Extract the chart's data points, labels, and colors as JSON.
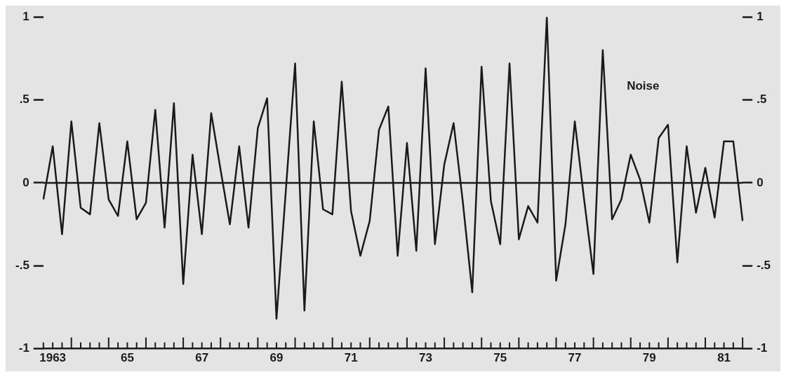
{
  "chart_data": {
    "type": "line",
    "categories": [
      null,
      "1963",
      null,
      null,
      null,
      null,
      null,
      null,
      null,
      "65",
      null,
      null,
      null,
      null,
      null,
      null,
      null,
      "67",
      null,
      null,
      null,
      null,
      null,
      null,
      null,
      "69",
      null,
      null,
      null,
      null,
      null,
      null,
      null,
      "71",
      null,
      null,
      null,
      null,
      null,
      null,
      null,
      "73",
      null,
      null,
      null,
      null,
      null,
      null,
      null,
      "75",
      null,
      null,
      null,
      null,
      null,
      null,
      null,
      "77",
      null,
      null,
      null,
      null,
      null,
      null,
      null,
      "79",
      null,
      null,
      null,
      null,
      null,
      null,
      null,
      "81",
      null,
      null
    ],
    "series": [
      {
        "name": "Noise",
        "color": "#1a1a1a",
        "values": [
          -0.1,
          0.22,
          -0.31,
          0.37,
          -0.15,
          -0.19,
          0.36,
          -0.1,
          -0.2,
          0.25,
          -0.22,
          -0.12,
          0.44,
          -0.27,
          0.48,
          -0.61,
          0.17,
          -0.31,
          0.42,
          0.08,
          -0.25,
          0.22,
          -0.27,
          0.33,
          0.51,
          -0.82,
          -0.05,
          0.72,
          -0.77,
          0.37,
          -0.16,
          -0.19,
          0.61,
          -0.17,
          -0.44,
          -0.23,
          0.32,
          0.46,
          -0.44,
          0.24,
          -0.41,
          0.69,
          -0.37,
          0.11,
          0.36,
          -0.12,
          -0.66,
          0.7,
          -0.11,
          -0.37,
          0.72,
          -0.34,
          -0.14,
          -0.24,
          1.0,
          -0.59,
          -0.25,
          0.37,
          -0.1,
          -0.55,
          0.8,
          -0.22,
          -0.1,
          0.17,
          0.02,
          -0.24,
          0.27,
          0.35,
          -0.48,
          0.22,
          -0.18,
          0.09,
          -0.21,
          0.25,
          0.25,
          -0.23
        ]
      }
    ],
    "ylim": [
      -1,
      1
    ],
    "yticks": [
      -1,
      {
        "value": -0.5,
        "label": "-.5"
      },
      0,
      {
        "value": 0.5,
        "label": ".5"
      },
      1
    ],
    "y2lim": [
      -1,
      1
    ],
    "y2ticks": [
      -1,
      {
        "value": -0.5,
        "label": "-.5"
      },
      0,
      {
        "value": 0.5,
        "label": ".5"
      },
      1
    ],
    "ref_lines": [
      {
        "axis": "y",
        "value": 0
      }
    ],
    "grid": false,
    "legend": false,
    "marker": "none"
  }
}
